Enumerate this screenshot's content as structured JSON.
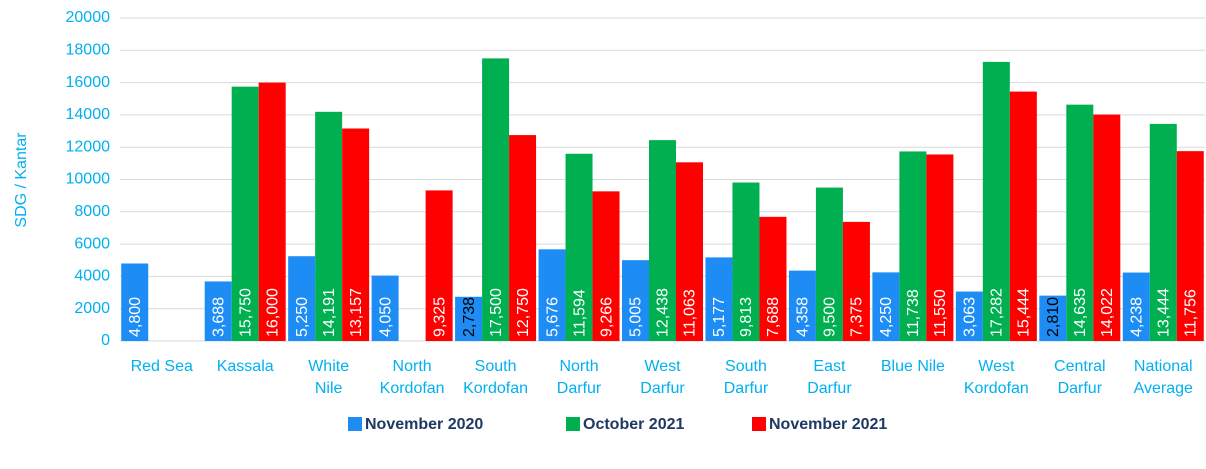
{
  "chart_data": {
    "type": "bar",
    "y_label": "SDG / Kantar",
    "categories": [
      "Red Sea",
      "Kassala",
      "White\nNile",
      "North\nKordofan",
      "South\nKordofan",
      "North\nDarfur",
      "West\nDarfur",
      "South\nDarfur",
      "East\nDarfur",
      "Blue Nile",
      "West\nKordofan",
      "Central\nDarfur",
      "National\nAverage"
    ],
    "series": [
      {
        "name": "November 2020",
        "color": "#1e8cf5",
        "values": [
          4800,
          3688,
          5250,
          4050,
          2738,
          5676,
          5005,
          5177,
          4358,
          4250,
          3063,
          2810,
          4238
        ],
        "value_labels": [
          "4,800",
          "3,688",
          "5,250",
          "4,050",
          "2,738",
          "5,676",
          "5,005",
          "5,177",
          "4,358",
          "4,250",
          "3,063",
          "2,810",
          "4,238"
        ]
      },
      {
        "name": "October 2021",
        "color": "#00b050",
        "values": [
          null,
          15750,
          14191,
          null,
          17500,
          11594,
          12438,
          9813,
          9500,
          11738,
          17282,
          14635,
          13444
        ],
        "value_labels": [
          null,
          "15,750",
          "14,191",
          null,
          "17,500",
          "11,594",
          "12,438",
          "9,813",
          "9,500",
          "11,738",
          "17,282",
          "14,635",
          "13,444"
        ]
      },
      {
        "name": "November 2021",
        "color": "#ff0000",
        "values": [
          null,
          16000,
          13157,
          9325,
          12750,
          9266,
          11063,
          7688,
          7375,
          11550,
          15444,
          14022,
          11756
        ],
        "value_labels": [
          null,
          "16,000",
          "13,157",
          "9,325",
          "12,750",
          "9,266",
          "11,063",
          "7,688",
          "7,375",
          "11,550",
          "15,444",
          "14,022",
          "11,756"
        ]
      }
    ],
    "ylim": [
      0,
      20000
    ],
    "yticks": [
      0,
      2000,
      4000,
      6000,
      8000,
      10000,
      12000,
      14000,
      16000,
      18000,
      20000
    ],
    "grid": true,
    "legend": "bottom"
  }
}
